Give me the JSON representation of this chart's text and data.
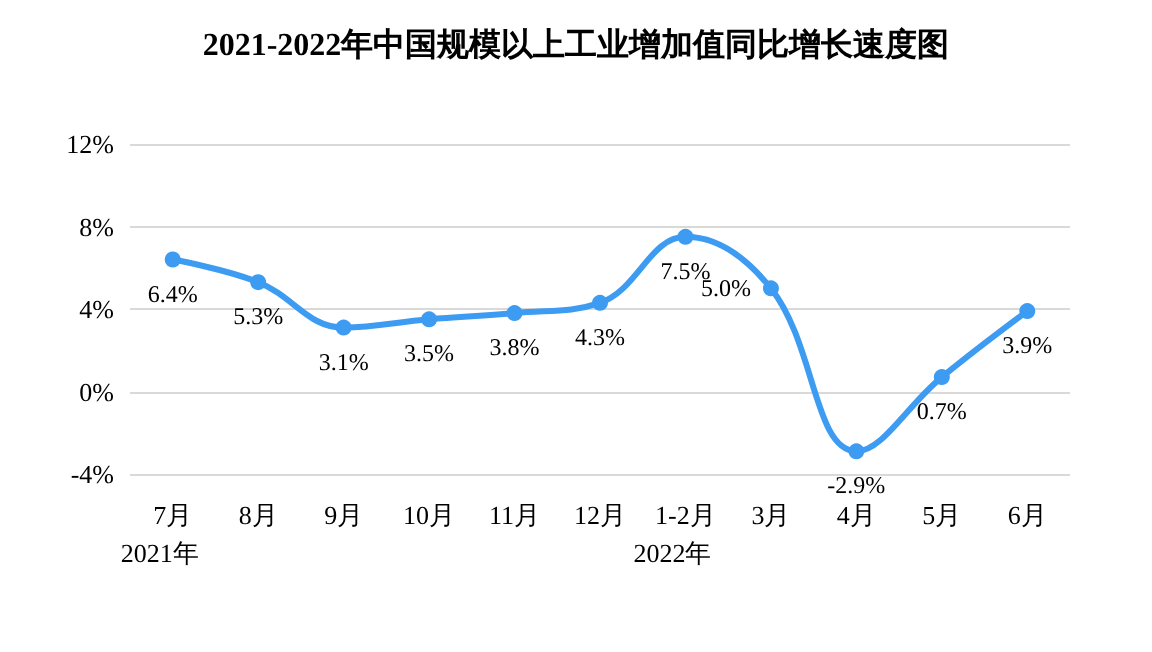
{
  "chart_data": {
    "type": "line",
    "title": "2021-2022年中国规模以上工业增加值同比增长速度图",
    "categories": [
      "7月",
      "8月",
      "9月",
      "10月",
      "11月",
      "12月",
      "1-2月",
      "3月",
      "4月",
      "5月",
      "6月"
    ],
    "series": [
      {
        "color": "#3d9cf2",
        "values": [
          6.4,
          5.3,
          3.1,
          3.5,
          3.8,
          4.3,
          7.5,
          5.0,
          -2.9,
          0.7,
          3.9
        ],
        "value_labels": [
          "6.4%",
          "5.3%",
          "3.1%",
          "3.5%",
          "3.8%",
          "4.3%",
          "7.5%",
          "5.0%",
          "-2.9%",
          "0.7%",
          "3.9%"
        ]
      }
    ],
    "ylim": [
      -4,
      12
    ],
    "yticks": [
      {
        "value": -4,
        "label": "-4%"
      },
      {
        "value": 0,
        "label": "0%"
      },
      {
        "value": 4,
        "label": "4%"
      },
      {
        "value": 8,
        "label": "8%"
      },
      {
        "value": 12,
        "label": "12%"
      }
    ],
    "grid": "y",
    "marker": "circle",
    "line_style": "solid",
    "annotations": [
      "2021年",
      "2022年"
    ]
  }
}
